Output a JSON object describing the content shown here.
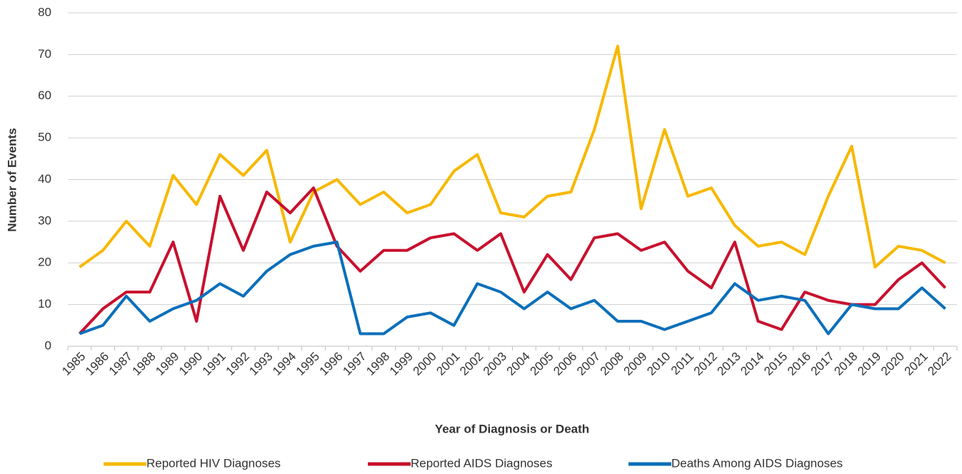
{
  "chart_data": {
    "type": "line",
    "x_label": "Year of Diagnosis or Death",
    "y_label": "Number of Events",
    "categories": [
      "1985",
      "1986",
      "1987",
      "1988",
      "1989",
      "1990",
      "1991",
      "1992",
      "1993",
      "1994",
      "1995",
      "1996",
      "1997",
      "1998",
      "1999",
      "2000",
      "2001",
      "2002",
      "2003",
      "2004",
      "2005",
      "2006",
      "2007",
      "2008",
      "2009",
      "2010",
      "2011",
      "2012",
      "2013",
      "2014",
      "2015",
      "2016",
      "2017",
      "2018",
      "2019",
      "2020",
      "2021",
      "2022"
    ],
    "series": [
      {
        "name": "Reported HIV Diagnoses",
        "color": "#f7b800",
        "values": [
          19,
          23,
          30,
          24,
          41,
          34,
          46,
          41,
          47,
          25,
          37,
          40,
          34,
          37,
          32,
          34,
          42,
          46,
          32,
          31,
          36,
          37,
          52,
          72,
          33,
          52,
          36,
          38,
          29,
          24,
          25,
          22,
          36,
          48,
          19,
          24,
          23,
          20
        ]
      },
      {
        "name": "Reported AIDS Diagnoses",
        "color": "#c8102e",
        "values": [
          3,
          9,
          13,
          13,
          25,
          6,
          36,
          23,
          37,
          32,
          38,
          24,
          18,
          23,
          23,
          26,
          27,
          23,
          27,
          13,
          22,
          16,
          26,
          27,
          23,
          25,
          18,
          14,
          25,
          6,
          4,
          13,
          11,
          10,
          10,
          16,
          20,
          14
        ]
      },
      {
        "name": "Deaths Among AIDS Diagnoses",
        "color": "#0b6fba",
        "values": [
          3,
          5,
          12,
          6,
          9,
          11,
          15,
          12,
          18,
          22,
          24,
          25,
          3,
          3,
          7,
          8,
          5,
          15,
          13,
          9,
          13,
          9,
          11,
          6,
          6,
          4,
          6,
          8,
          15,
          11,
          12,
          11,
          3,
          10,
          9,
          9,
          14,
          9
        ]
      }
    ],
    "ylim": [
      0,
      80
    ],
    "yticks": [
      0,
      10,
      20,
      30,
      40,
      50,
      60,
      70,
      80
    ],
    "grid": true,
    "legend": "bottom"
  }
}
